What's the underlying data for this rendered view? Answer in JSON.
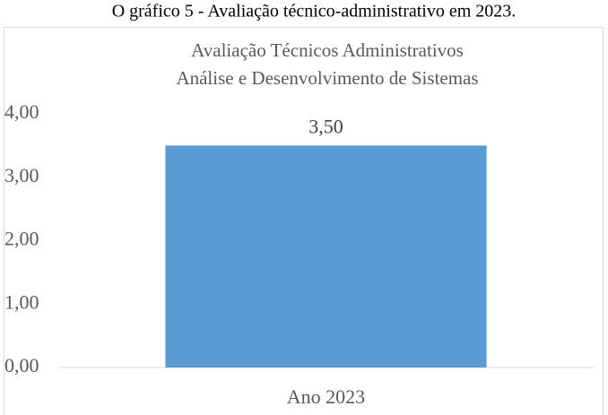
{
  "chart_data": {
    "type": "bar",
    "caption": "O gráfico 5 - Avaliação técnico-administrativo em 2023.",
    "title": "Avaliação Técnicos Administrativos",
    "subtitle": "Análise e Desenvolvimento de Sistemas",
    "categories": [
      "Ano 2023"
    ],
    "values": [
      3.5
    ],
    "value_labels": [
      "3,50"
    ],
    "color": "#5b9bd5",
    "ylim": [
      0,
      4
    ],
    "yticks": [
      {
        "value": 0,
        "label": "0,00"
      },
      {
        "value": 1,
        "label": "1,00"
      },
      {
        "value": 2,
        "label": "2,00"
      },
      {
        "value": 3,
        "label": "3,00"
      },
      {
        "value": 4,
        "label": "4,00"
      }
    ],
    "grid": false
  }
}
